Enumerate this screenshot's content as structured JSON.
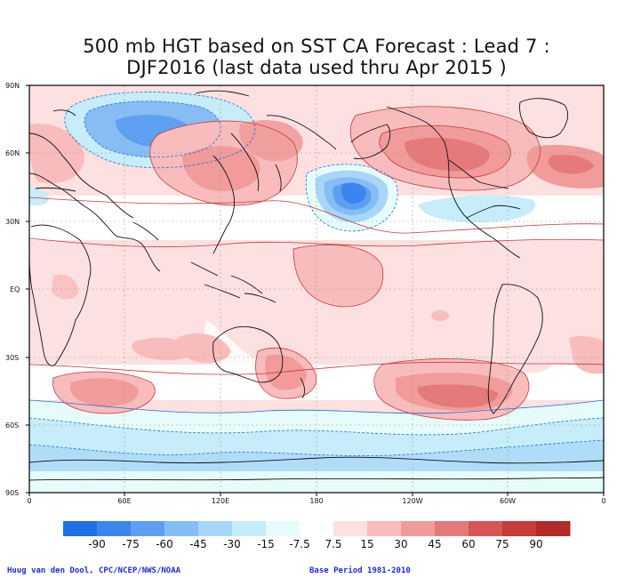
{
  "title": {
    "line1": "500 mb HGT based on SST CA Forecast : Lead 7 :",
    "line2": "DJF2016 (last data used thru Apr 2015 )"
  },
  "lat_labels": [
    "90N",
    "60N",
    "30N",
    "EQ",
    "30S",
    "60S",
    "90S"
  ],
  "lon_labels": [
    "0",
    "60E",
    "120E",
    "180",
    "120W",
    "60W",
    "0"
  ],
  "colorbar": {
    "labels": [
      "-90",
      "-75",
      "-60",
      "-45",
      "-30",
      "-15",
      "-7.5",
      "7.5",
      "15",
      "30",
      "45",
      "60",
      "75",
      "90"
    ],
    "colors": [
      "#1f6fe6",
      "#3b86ee",
      "#5e9ff2",
      "#87bdf5",
      "#a8d6f7",
      "#c6edf9",
      "#e6fcfb",
      "#ffffff",
      "#fde0e0",
      "#f8bcbc",
      "#f19b9b",
      "#e47a7a",
      "#d75555",
      "#c83a3a",
      "#b22a2a"
    ]
  },
  "footer": {
    "credit": "Huug van den Dool, CPC/NCEP/NWS/NOAA",
    "base_period": "Base Period 1981-2010"
  }
}
